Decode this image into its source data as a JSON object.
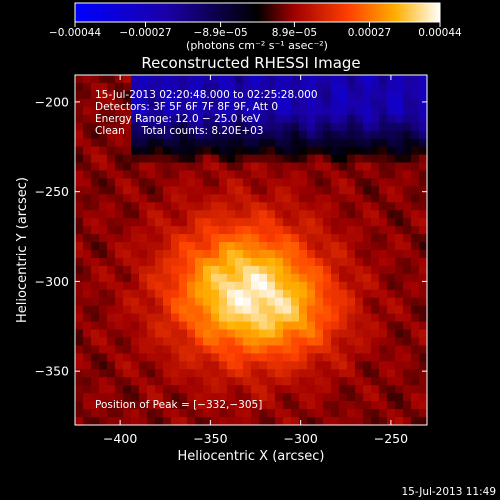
{
  "chart_data": {
    "type": "heatmap",
    "title": "Reconstructed RHESSI Image",
    "xlabel": "Heliocentric X (arcsec)",
    "ylabel": "Heliocentric Y (arcsec)",
    "xlim": [
      -425,
      -230
    ],
    "ylim": [
      -380,
      -185
    ],
    "xticks": [
      -400,
      -350,
      -300,
      -250
    ],
    "xtick_labels": [
      "−400",
      "−350",
      "−300",
      "−250"
    ],
    "yticks": [
      -200,
      -250,
      -300,
      -350
    ],
    "ytick_labels": [
      "−200",
      "−250",
      "−300",
      "−350"
    ],
    "colorbar": {
      "range": [
        -0.00044,
        0.00044
      ],
      "ticks": [
        -0.00044,
        -0.00027,
        -8.9e-05,
        8.9e-05,
        0.00027,
        0.00044
      ],
      "tick_labels": [
        "−0.00044",
        "−0.00027",
        "−8.9e−05",
        "8.9e−05",
        "0.00027",
        "0.00044"
      ],
      "unit_label": "(photons cm⁻² s⁻¹ asec⁻²)",
      "colormap": [
        "#0000ff",
        "#1a00a8",
        "#000000",
        "#a00000",
        "#ff4000",
        "#ffb000",
        "#ffffff"
      ]
    },
    "info_lines": [
      "15-Jul-2013 02:20:48.000 to 02:25:28.000",
      "Detectors: 3F 5F 6F 7F 8F 9F, Att 0",
      "Energy Range: 12.0 − 25.0 keV",
      "Clean     Total counts: 8.20E+03"
    ],
    "peak_label": "Position of Peak = [−332,−305]",
    "peak": [
      -332,
      -305
    ]
  },
  "footer_timestamp": "15-Jul-2013 11:49"
}
